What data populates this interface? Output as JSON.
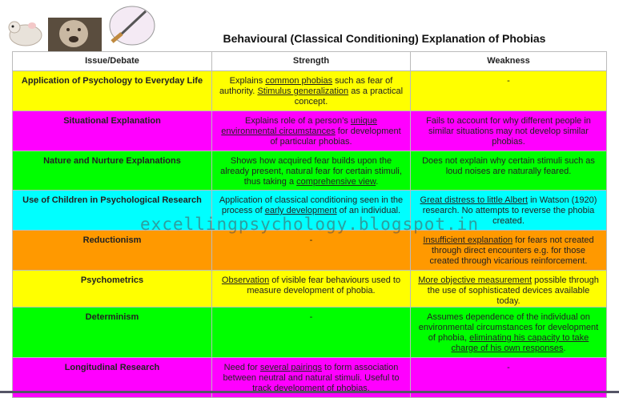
{
  "header": {
    "title": "Behavioural (Classical Conditioning) Explanation of Phobias"
  },
  "watermark": "excellingpsychology.blogspot.in",
  "table": {
    "columns": [
      "Issue/Debate",
      "Strength",
      "Weakness"
    ],
    "rows": [
      {
        "color": "#ffff00",
        "cells": [
          [
            {
              "text": "Application of Psychology to Everyday Life"
            }
          ],
          [
            {
              "text": "Explains "
            },
            {
              "text": "common phobias",
              "underline": true
            },
            {
              "text": " such as fear of authority. "
            },
            {
              "text": "Stimulus generalization",
              "underline": true
            },
            {
              "text": " as a practical concept."
            }
          ],
          [
            {
              "text": "-"
            }
          ]
        ]
      },
      {
        "color": "#ff00ff",
        "cells": [
          [
            {
              "text": "Situational Explanation"
            }
          ],
          [
            {
              "text": "Explains role of a person’s "
            },
            {
              "text": "unique environmental circumstances",
              "underline": true
            },
            {
              "text": " for development of particular phobias."
            }
          ],
          [
            {
              "text": "Fails to account for why different people in similar situations may not develop similar phobias."
            }
          ]
        ]
      },
      {
        "color": "#00ff00",
        "cells": [
          [
            {
              "text": "Nature and Nurture Explanations"
            }
          ],
          [
            {
              "text": "Shows how acquired fear builds upon the already present, natural fear for certain stimuli, thus taking a "
            },
            {
              "text": "comprehensive view",
              "underline": true
            },
            {
              "text": "."
            }
          ],
          [
            {
              "text": "Does not explain why certain stimuli such as loud noises are naturally feared."
            }
          ]
        ]
      },
      {
        "color": "#00ffff",
        "cells": [
          [
            {
              "text": "Use of Children in Psychological Research"
            }
          ],
          [
            {
              "text": "Application of classical conditioning seen in the process of "
            },
            {
              "text": "early development",
              "underline": true
            },
            {
              "text": " of an individual."
            }
          ],
          [
            {
              "text": "Great distress to little Albert",
              "underline": true
            },
            {
              "text": " in Watson (1920) research. No attempts to reverse the phobia created."
            }
          ]
        ]
      },
      {
        "color": "#ff9900",
        "cells": [
          [
            {
              "text": "Reductionism"
            }
          ],
          [
            {
              "text": "-"
            }
          ],
          [
            {
              "text": "Insufficient explanation",
              "underline": true
            },
            {
              "text": " for fears not created through direct encounters e.g. for those created through vicarious reinforcement."
            }
          ]
        ]
      },
      {
        "color": "#ffff00",
        "cells": [
          [
            {
              "text": "Psychometrics"
            }
          ],
          [
            {
              "text": "Observation",
              "underline": true
            },
            {
              "text": " of visible  fear behaviours used to measure development of phobia."
            }
          ],
          [
            {
              "text": "More objective measurement",
              "underline": true
            },
            {
              "text": " possible through the use of sophisticated devices available today."
            }
          ]
        ]
      },
      {
        "color": "#00ff00",
        "cells": [
          [
            {
              "text": "Determinism"
            }
          ],
          [
            {
              "text": "-"
            }
          ],
          [
            {
              "text": "Assumes dependence of the individual on environmental circumstances for development of phobia, "
            },
            {
              "text": "eliminating his capacity to take charge of his own responses",
              "underline": true
            },
            {
              "text": "."
            }
          ]
        ]
      },
      {
        "color": "#ff00ff",
        "cells": [
          [
            {
              "text": "Longitudinal Research"
            }
          ],
          [
            {
              "text": "Need for "
            },
            {
              "text": "several pairings",
              "underline": true
            },
            {
              "text": " to form association between neutral and natural stimuli. Useful to track development of phobias."
            }
          ],
          [
            {
              "text": "-"
            }
          ]
        ]
      }
    ]
  }
}
